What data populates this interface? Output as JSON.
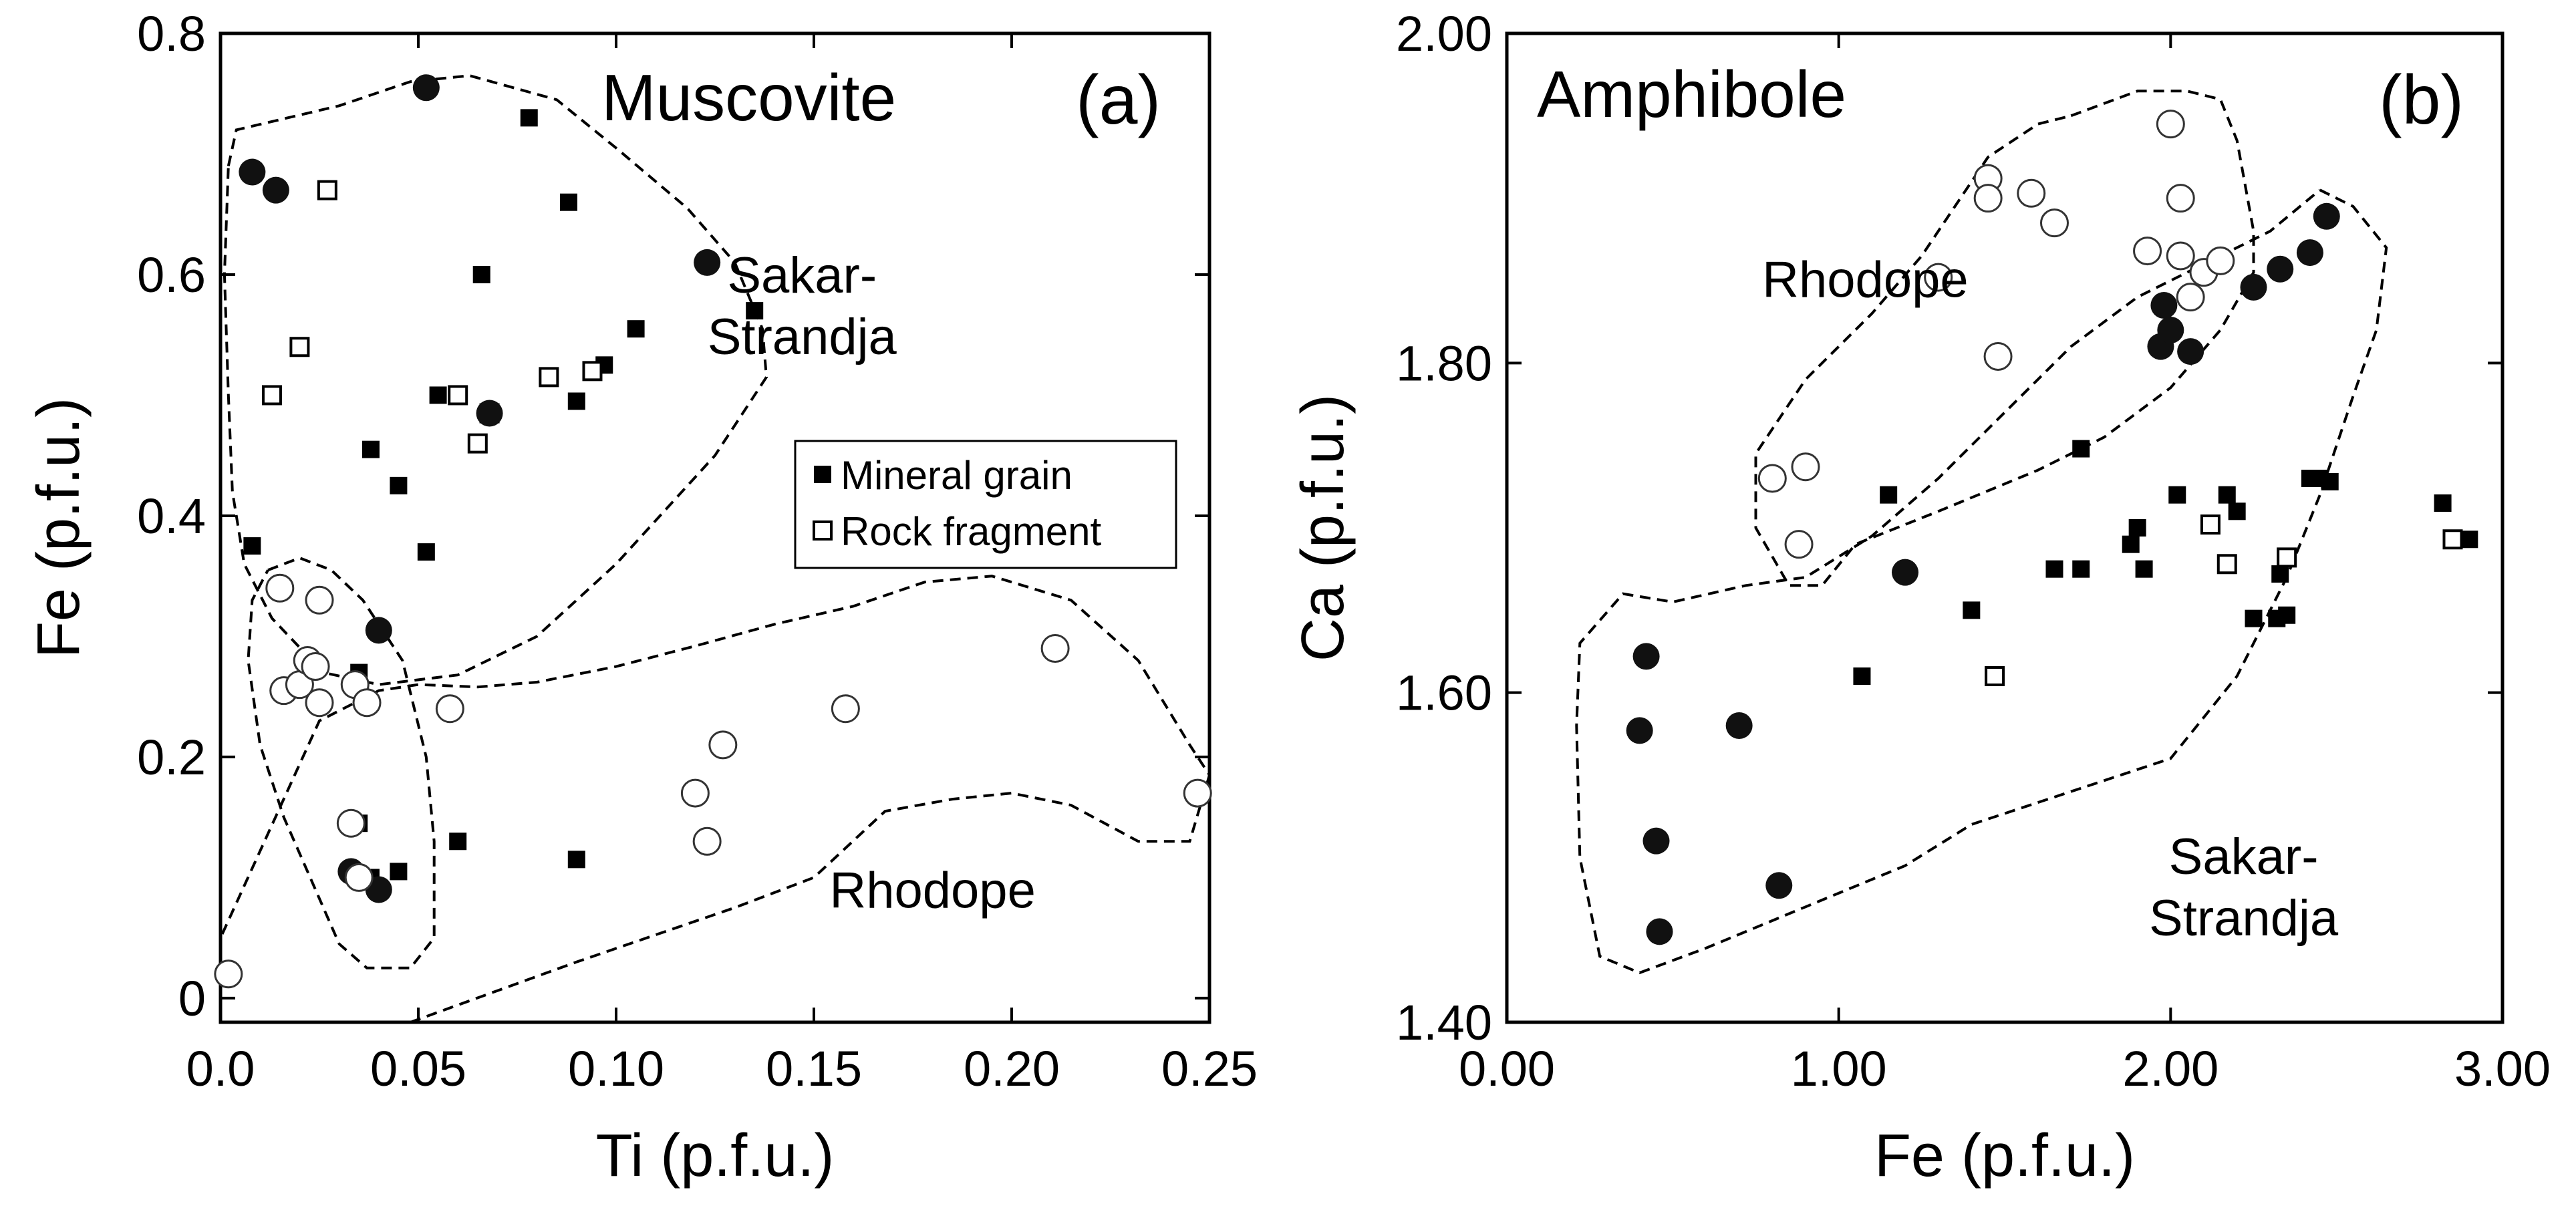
{
  "chart_data": [
    {
      "panel": "(a)",
      "type": "scatter",
      "title": "Muscovite",
      "xlabel": "Ti (p.f.u.)",
      "ylabel": "Fe (p.f.u.)",
      "xlim": [
        0,
        0.25
      ],
      "ylim": [
        -0.02,
        0.8
      ],
      "xticks": [
        0,
        0.05,
        0.1,
        0.15,
        0.2,
        0.25
      ],
      "xtick_labels": [
        "0.0",
        "0.05",
        "0.10",
        "0.15",
        "0.20",
        "0.25"
      ],
      "yticks": [
        0,
        0.2,
        0.4,
        0.6,
        0.8
      ],
      "ytick_labels": [
        "0",
        "0.2",
        "0.4",
        "0.6",
        "0.8"
      ],
      "grid": false,
      "legend": {
        "placement": "right",
        "entries": [
          {
            "label": "Mineral grain",
            "marker": "filled-square"
          },
          {
            "label": "Rock fragment",
            "marker": "open-square"
          }
        ]
      },
      "regions": [
        {
          "name": "Sakar-Strandja",
          "label_lines": [
            "Sakar-",
            "Strandja"
          ],
          "label_at": [
            0.147,
            0.585
          ],
          "boundary": [
            [
              0.002,
              0.69
            ],
            [
              0.004,
              0.72
            ],
            [
              0.03,
              0.74
            ],
            [
              0.048,
              0.76
            ],
            [
              0.063,
              0.765
            ],
            [
              0.085,
              0.745
            ],
            [
              0.1,
              0.705
            ],
            [
              0.118,
              0.655
            ],
            [
              0.13,
              0.61
            ],
            [
              0.137,
              0.555
            ],
            [
              0.138,
              0.515
            ],
            [
              0.125,
              0.45
            ],
            [
              0.1,
              0.36
            ],
            [
              0.08,
              0.3
            ],
            [
              0.06,
              0.268
            ],
            [
              0.04,
              0.26
            ],
            [
              0.026,
              0.27
            ],
            [
              0.013,
              0.315
            ],
            [
              0.006,
              0.36
            ],
            [
              0.003,
              0.42
            ],
            [
              0.002,
              0.5
            ],
            [
              0.001,
              0.6
            ],
            [
              0.002,
              0.69
            ]
          ]
        },
        {
          "name": "Rhodope",
          "label_lines": [
            "Rhodope"
          ],
          "label_at": [
            0.18,
            0.075
          ],
          "boundary": [
            [
              0.048,
              -0.02
            ],
            [
              0.09,
              0.03
            ],
            [
              0.13,
              0.075
            ],
            [
              0.15,
              0.1
            ],
            [
              0.168,
              0.155
            ],
            [
              0.185,
              0.165
            ],
            [
              0.2,
              0.17
            ],
            [
              0.215,
              0.16
            ],
            [
              0.232,
              0.13
            ],
            [
              0.245,
              0.13
            ],
            [
              0.25,
              0.185
            ],
            [
              0.245,
              0.21
            ],
            [
              0.232,
              0.28
            ],
            [
              0.215,
              0.33
            ],
            [
              0.195,
              0.35
            ],
            [
              0.178,
              0.345
            ],
            [
              0.16,
              0.325
            ],
            [
              0.14,
              0.31
            ],
            [
              0.12,
              0.292
            ],
            [
              0.1,
              0.275
            ],
            [
              0.08,
              0.262
            ],
            [
              0.065,
              0.258
            ],
            [
              0.05,
              0.26
            ],
            [
              0.04,
              0.255
            ],
            [
              0.025,
              0.23
            ],
            [
              0.0,
              0.05
            ]
          ]
        },
        {
          "name": "Rhodope",
          "label_lines": [],
          "boundary": [
            [
              0.012,
              0.355
            ],
            [
              0.02,
              0.365
            ],
            [
              0.028,
              0.355
            ],
            [
              0.036,
              0.33
            ],
            [
              0.046,
              0.28
            ],
            [
              0.052,
              0.2
            ],
            [
              0.054,
              0.13
            ],
            [
              0.054,
              0.05
            ],
            [
              0.048,
              0.025
            ],
            [
              0.037,
              0.025
            ],
            [
              0.03,
              0.045
            ],
            [
              0.024,
              0.09
            ],
            [
              0.016,
              0.15
            ],
            [
              0.01,
              0.21
            ],
            [
              0.007,
              0.28
            ],
            [
              0.008,
              0.33
            ],
            [
              0.012,
              0.355
            ]
          ]
        }
      ],
      "series": [
        {
          "name": "Mineral grain",
          "marker": "filled-square",
          "points": [
            [
              0.008,
              0.375
            ],
            [
              0.035,
              0.145
            ],
            [
              0.035,
              0.27
            ],
            [
              0.038,
              0.455
            ],
            [
              0.038,
              0.1
            ],
            [
              0.045,
              0.425
            ],
            [
              0.045,
              0.105
            ],
            [
              0.052,
              0.37
            ],
            [
              0.055,
              0.5
            ],
            [
              0.06,
              0.13
            ],
            [
              0.066,
              0.6
            ],
            [
              0.078,
              0.73
            ],
            [
              0.088,
              0.66
            ],
            [
              0.09,
              0.115
            ],
            [
              0.09,
              0.495
            ],
            [
              0.097,
              0.525
            ],
            [
              0.105,
              0.555
            ],
            [
              0.135,
              0.57
            ]
          ]
        },
        {
          "name": "Rock fragment",
          "marker": "open-square",
          "points": [
            [
              0.013,
              0.5
            ],
            [
              0.02,
              0.54
            ],
            [
              0.027,
              0.67
            ],
            [
              0.06,
              0.5
            ],
            [
              0.065,
              0.46
            ],
            [
              0.068,
              0.485
            ],
            [
              0.083,
              0.515
            ],
            [
              0.094,
              0.52
            ]
          ]
        },
        {
          "name": "Sakar-Strandja (muscovite)",
          "marker": "filled-circle",
          "points": [
            [
              0.008,
              0.685
            ],
            [
              0.014,
              0.67
            ],
            [
              0.04,
              0.305
            ],
            [
              0.052,
              0.755
            ],
            [
              0.068,
              0.485
            ],
            [
              0.123,
              0.61
            ],
            [
              0.033,
              0.105
            ],
            [
              0.04,
              0.09
            ]
          ]
        },
        {
          "name": "Rhodope (muscovite)",
          "marker": "open-circle",
          "points": [
            [
              0.002,
              0.02
            ],
            [
              0.015,
              0.34
            ],
            [
              0.016,
              0.255
            ],
            [
              0.02,
              0.26
            ],
            [
              0.022,
              0.28
            ],
            [
              0.024,
              0.275
            ],
            [
              0.025,
              0.245
            ],
            [
              0.025,
              0.33
            ],
            [
              0.033,
              0.145
            ],
            [
              0.034,
              0.26
            ],
            [
              0.035,
              0.1
            ],
            [
              0.037,
              0.245
            ],
            [
              0.058,
              0.24
            ],
            [
              0.12,
              0.17
            ],
            [
              0.123,
              0.13
            ],
            [
              0.127,
              0.21
            ],
            [
              0.158,
              0.24
            ],
            [
              0.211,
              0.29
            ],
            [
              0.247,
              0.17
            ]
          ]
        }
      ]
    },
    {
      "panel": "(b)",
      "type": "scatter",
      "title": "Amphibole",
      "xlabel": "Fe (p.f.u.)",
      "ylabel": "Ca (p.f.u.)",
      "xlim": [
        0,
        3
      ],
      "ylim": [
        1.4,
        2.0
      ],
      "xticks": [
        0,
        1,
        2,
        3
      ],
      "xtick_labels": [
        "0.00",
        "1.00",
        "2.00",
        "3.00"
      ],
      "yticks": [
        1.4,
        1.6,
        1.8,
        2.0
      ],
      "ytick_labels": [
        "1.40",
        "1.60",
        "1.80",
        "2.00"
      ],
      "grid": false,
      "regions": [
        {
          "name": "Rhodope",
          "label_lines": [
            "Rhodope"
          ],
          "label_at": [
            1.08,
            1.84
          ],
          "boundary": [
            [
              1.7,
              1.95
            ],
            [
              1.9,
              1.965
            ],
            [
              2.05,
              1.965
            ],
            [
              2.15,
              1.96
            ],
            [
              2.2,
              1.935
            ],
            [
              2.25,
              1.88
            ],
            [
              2.25,
              1.855
            ],
            [
              2.15,
              1.82
            ],
            [
              2.0,
              1.785
            ],
            [
              1.8,
              1.755
            ],
            [
              1.6,
              1.735
            ],
            [
              1.3,
              1.71
            ],
            [
              1.05,
              1.69
            ],
            [
              0.95,
              1.665
            ],
            [
              0.85,
              1.665
            ],
            [
              0.75,
              1.7
            ],
            [
              0.75,
              1.745
            ],
            [
              0.9,
              1.79
            ],
            [
              1.1,
              1.83
            ],
            [
              1.25,
              1.865
            ],
            [
              1.35,
              1.895
            ],
            [
              1.45,
              1.925
            ],
            [
              1.6,
              1.945
            ],
            [
              1.7,
              1.95
            ]
          ]
        },
        {
          "name": "Sakar-Strandja",
          "label_lines": [
            "Sakar-",
            "Strandja"
          ],
          "label_at": [
            2.22,
            1.49
          ],
          "boundary": [
            [
              2.45,
              1.905
            ],
            [
              2.55,
              1.895
            ],
            [
              2.65,
              1.87
            ],
            [
              2.62,
              1.82
            ],
            [
              2.55,
              1.78
            ],
            [
              2.45,
              1.72
            ],
            [
              2.35,
              1.67
            ],
            [
              2.2,
              1.61
            ],
            [
              2.0,
              1.56
            ],
            [
              1.7,
              1.54
            ],
            [
              1.4,
              1.52
            ],
            [
              1.2,
              1.495
            ],
            [
              0.9,
              1.47
            ],
            [
              0.6,
              1.445
            ],
            [
              0.4,
              1.43
            ],
            [
              0.28,
              1.44
            ],
            [
              0.22,
              1.5
            ],
            [
              0.21,
              1.58
            ],
            [
              0.22,
              1.63
            ],
            [
              0.35,
              1.66
            ],
            [
              0.5,
              1.655
            ],
            [
              0.72,
              1.665
            ],
            [
              0.9,
              1.67
            ],
            [
              1.1,
              1.695
            ],
            [
              1.3,
              1.73
            ],
            [
              1.5,
              1.77
            ],
            [
              1.7,
              1.81
            ],
            [
              1.9,
              1.84
            ],
            [
              2.1,
              1.86
            ],
            [
              2.3,
              1.88
            ],
            [
              2.45,
              1.905
            ]
          ]
        }
      ],
      "series": [
        {
          "name": "Mineral grain",
          "marker": "filled-square",
          "points": [
            [
              1.07,
              1.61
            ],
            [
              1.15,
              1.72
            ],
            [
              1.4,
              1.65
            ],
            [
              1.65,
              1.675
            ],
            [
              1.73,
              1.675
            ],
            [
              1.73,
              1.748
            ],
            [
              1.88,
              1.69
            ],
            [
              1.9,
              1.7
            ],
            [
              1.92,
              1.675
            ],
            [
              2.02,
              1.72
            ],
            [
              2.17,
              1.72
            ],
            [
              2.2,
              1.71
            ],
            [
              2.25,
              1.645
            ],
            [
              2.32,
              1.645
            ],
            [
              2.33,
              1.672
            ],
            [
              2.35,
              1.647
            ],
            [
              2.42,
              1.73
            ],
            [
              2.45,
              1.73
            ],
            [
              2.48,
              1.728
            ],
            [
              2.82,
              1.715
            ],
            [
              2.9,
              1.693
            ]
          ]
        },
        {
          "name": "Rock fragment",
          "marker": "open-square",
          "points": [
            [
              1.47,
              1.61
            ],
            [
              2.12,
              1.702
            ],
            [
              2.17,
              1.678
            ],
            [
              2.35,
              1.682
            ],
            [
              2.85,
              1.693
            ]
          ]
        },
        {
          "name": "Sakar-Strandja (amphibole)",
          "marker": "filled-circle",
          "points": [
            [
              0.4,
              1.577
            ],
            [
              0.42,
              1.622
            ],
            [
              0.45,
              1.51
            ],
            [
              0.46,
              1.455
            ],
            [
              0.7,
              1.58
            ],
            [
              0.82,
              1.483
            ],
            [
              1.2,
              1.673
            ],
            [
              1.97,
              1.81
            ],
            [
              1.98,
              1.835
            ],
            [
              2.0,
              1.82
            ],
            [
              2.06,
              1.807
            ],
            [
              2.25,
              1.846
            ],
            [
              2.33,
              1.857
            ],
            [
              2.42,
              1.867
            ],
            [
              2.47,
              1.889
            ]
          ]
        },
        {
          "name": "Rhodope (amphibole)",
          "marker": "open-circle",
          "points": [
            [
              0.8,
              1.73
            ],
            [
              0.88,
              1.69
            ],
            [
              0.9,
              1.737
            ],
            [
              1.3,
              1.852
            ],
            [
              1.45,
              1.912
            ],
            [
              1.45,
              1.9
            ],
            [
              1.48,
              1.804
            ],
            [
              1.58,
              1.903
            ],
            [
              1.65,
              1.885
            ],
            [
              1.93,
              1.868
            ],
            [
              2.0,
              1.945
            ],
            [
              2.03,
              1.865
            ],
            [
              2.03,
              1.9
            ],
            [
              2.06,
              1.84
            ],
            [
              2.1,
              1.855
            ],
            [
              2.15,
              1.862
            ]
          ]
        }
      ]
    }
  ]
}
